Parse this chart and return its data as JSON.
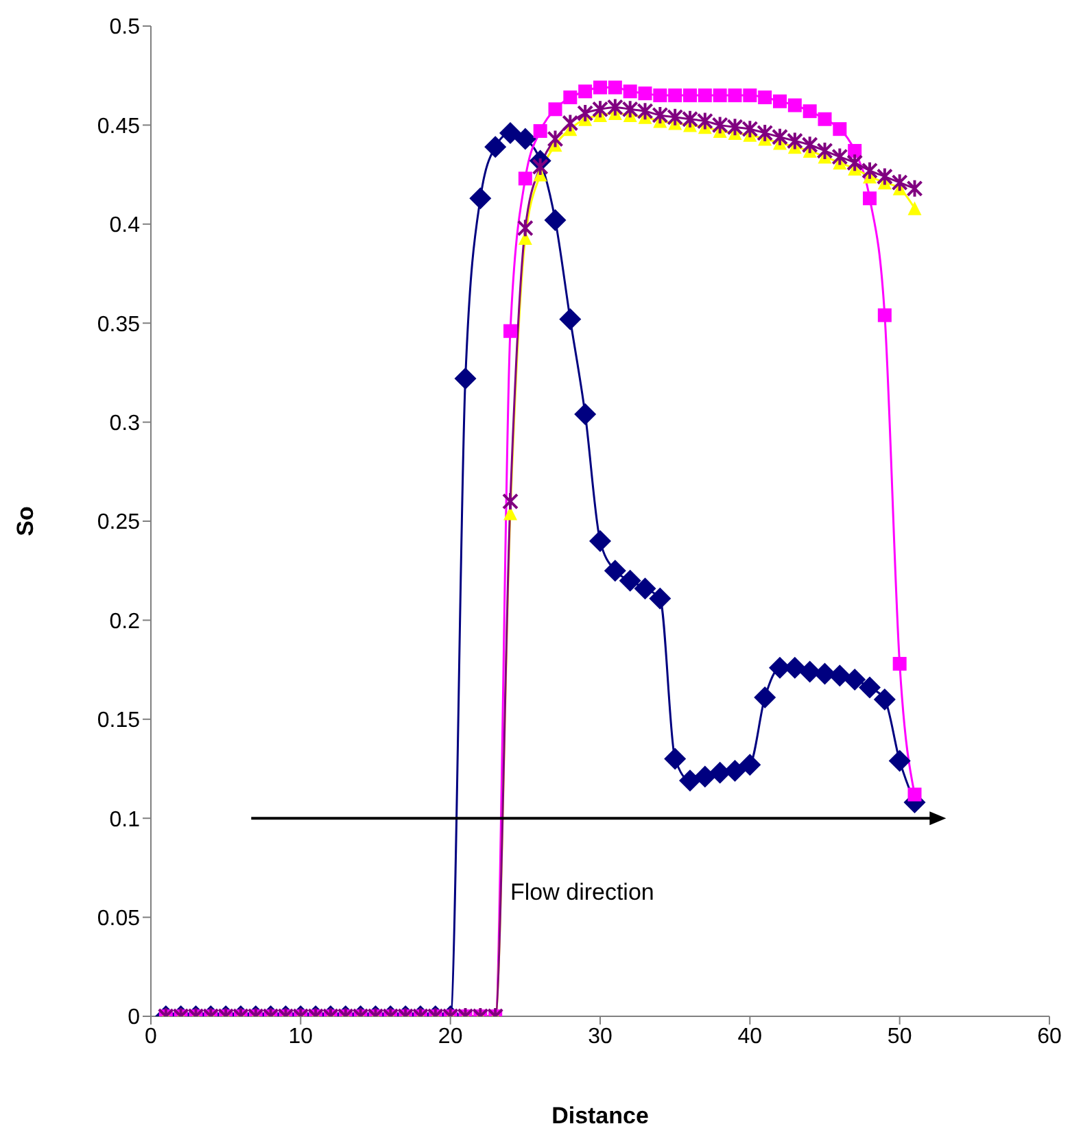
{
  "chart_data": {
    "type": "line",
    "xlabel": "Distance",
    "ylabel": "So",
    "xlim": [
      0,
      60
    ],
    "xticks": [
      0,
      10,
      20,
      30,
      40,
      50,
      60
    ],
    "ylim": [
      0,
      0.5
    ],
    "yticks": [
      0,
      0.05,
      0.1,
      0.15,
      0.2,
      0.25,
      0.3,
      0.35,
      0.4,
      0.45,
      0.5
    ],
    "legend": false,
    "annotations": [
      "Flow direction"
    ],
    "x": [
      1,
      2,
      3,
      4,
      5,
      6,
      7,
      8,
      9,
      10,
      11,
      12,
      13,
      14,
      15,
      16,
      17,
      18,
      19,
      20,
      21,
      22,
      23,
      24,
      25,
      26,
      27,
      28,
      29,
      30,
      31,
      32,
      33,
      34,
      35,
      36,
      37,
      38,
      39,
      40,
      41,
      42,
      43,
      44,
      45,
      46,
      47,
      48,
      49,
      50,
      51
    ],
    "series": [
      {
        "color": "#000080",
        "marker": "diamond",
        "values": [
          0,
          0,
          0,
          0,
          0,
          0,
          0,
          0,
          0,
          0,
          0,
          0,
          0,
          0,
          0,
          0,
          0,
          0,
          0,
          0,
          0.322,
          0.413,
          0.439,
          0.446,
          0.443,
          0.432,
          0.402,
          0.352,
          0.304,
          0.24,
          0.225,
          0.22,
          0.216,
          0.211,
          0.13,
          0.119,
          0.121,
          0.123,
          0.124,
          0.127,
          0.161,
          0.176,
          0.176,
          0.174,
          0.173,
          0.172,
          0.17,
          0.166,
          0.16,
          0.129,
          0.108
        ]
      },
      {
        "color": "#ff00ff",
        "marker": "square",
        "values": [
          0,
          0,
          0,
          0,
          0,
          0,
          0,
          0,
          0,
          0,
          0,
          0,
          0,
          0,
          0,
          0,
          0,
          0,
          0,
          0,
          0,
          0,
          0,
          0.346,
          0.423,
          0.447,
          0.458,
          0.464,
          0.467,
          0.469,
          0.469,
          0.467,
          0.466,
          0.465,
          0.465,
          0.465,
          0.465,
          0.465,
          0.465,
          0.465,
          0.464,
          0.462,
          0.46,
          0.457,
          0.453,
          0.448,
          0.437,
          0.413,
          0.354,
          0.178,
          0.112
        ]
      },
      {
        "color": "#ffff00",
        "marker": "triangle",
        "values": [
          0,
          0,
          0,
          0,
          0,
          0,
          0,
          0,
          0,
          0,
          0,
          0,
          0,
          0,
          0,
          0,
          0,
          0,
          0,
          0,
          0,
          0,
          0,
          0.254,
          0.393,
          0.425,
          0.44,
          0.448,
          0.453,
          0.455,
          0.456,
          0.455,
          0.454,
          0.452,
          0.451,
          0.45,
          0.449,
          0.447,
          0.446,
          0.445,
          0.443,
          0.441,
          0.439,
          0.437,
          0.434,
          0.431,
          0.428,
          0.424,
          0.421,
          0.418,
          0.408
        ]
      },
      {
        "color": "#800080",
        "marker": "cross",
        "values": [
          0,
          0,
          0,
          0,
          0,
          0,
          0,
          0,
          0,
          0,
          0,
          0,
          0,
          0,
          0,
          0,
          0,
          0,
          0,
          0,
          0,
          0,
          0,
          0.26,
          0.398,
          0.429,
          0.443,
          0.451,
          0.456,
          0.458,
          0.459,
          0.458,
          0.457,
          0.455,
          0.454,
          0.453,
          0.452,
          0.45,
          0.449,
          0.448,
          0.446,
          0.444,
          0.442,
          0.44,
          0.437,
          0.434,
          0.431,
          0.427,
          0.424,
          0.421,
          0.418
        ]
      }
    ]
  }
}
